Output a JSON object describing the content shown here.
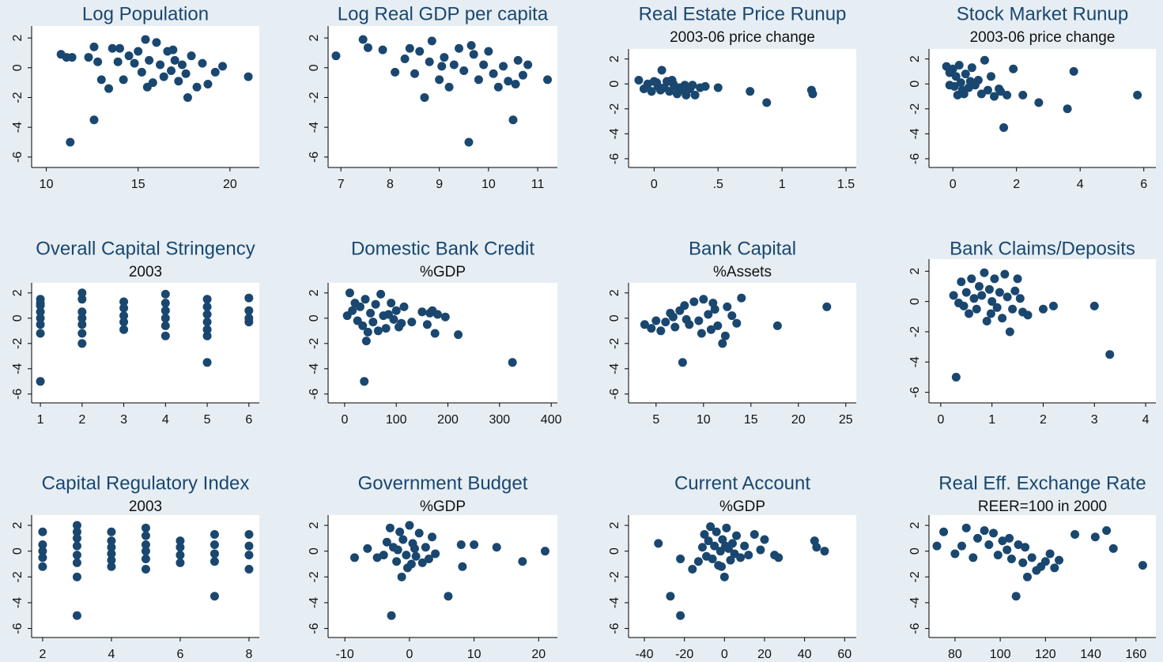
{
  "chart_data": [
    {
      "type": "scatter",
      "title": "Log Population",
      "color": "#1a476f",
      "x": [
        11.3,
        12.6,
        21,
        17.7,
        10.8,
        11.1,
        11.4,
        12.3,
        12.6,
        12.8,
        13,
        13.4,
        13.6,
        13.9,
        14.2,
        14.5,
        14.8,
        15,
        15.2,
        15.4,
        15.6,
        15.8,
        16,
        16.2,
        16.4,
        16.6,
        16.8,
        17,
        17.2,
        17.4,
        17.6,
        17.9,
        18.2,
        18.5,
        18.8,
        19.2,
        19.6,
        14,
        15.5,
        16.9
      ],
      "values": [
        -5,
        -3.5,
        -0.6,
        -2,
        0.9,
        0.7,
        0.7,
        0.7,
        1.4,
        0.4,
        -0.8,
        -1.4,
        1.3,
        0.4,
        -0.8,
        0.8,
        0.3,
        1.1,
        -0.3,
        1.9,
        0.5,
        -1,
        1.7,
        0.2,
        -0.6,
        1.1,
        -0.2,
        0.5,
        -0.9,
        0.2,
        -0.4,
        0.8,
        -1.3,
        0.3,
        -1.1,
        -0.3,
        0.1,
        1.3,
        -1.3,
        1.2
      ],
      "xlim": [
        9.2,
        21.6
      ],
      "xticks": [
        10,
        15,
        20
      ],
      "ylim": [
        -6.7,
        2.8
      ],
      "yticks": [
        -6,
        -4,
        -2,
        0,
        2
      ]
    },
    {
      "type": "scatter",
      "title": "Log Real GDP per capita",
      "color": "#1a476f",
      "x": [
        6.9,
        7.45,
        7.55,
        7.85,
        8.1,
        8.3,
        8.4,
        8.5,
        8.6,
        8.7,
        8.8,
        8.85,
        9,
        9.1,
        9.2,
        9.3,
        9.4,
        9.5,
        9.6,
        9.7,
        9.8,
        9.9,
        10,
        10.1,
        10.2,
        10.3,
        10.4,
        10.5,
        10.6,
        10.7,
        10.8,
        11.2,
        9.65,
        9.05,
        10.55
      ],
      "values": [
        0.8,
        1.9,
        1.35,
        1.2,
        -0.3,
        0.6,
        1.3,
        -0.4,
        1.1,
        -2,
        0.4,
        1.8,
        -0.8,
        0.7,
        -1.3,
        0.2,
        1.3,
        -0.2,
        -5,
        0.9,
        -0.8,
        0.2,
        1.1,
        -0.4,
        -1.3,
        0.1,
        -0.9,
        -3.5,
        0.5,
        -0.5,
        0.2,
        -0.8,
        1.5,
        0.1,
        -1.1
      ],
      "xlim": [
        6.74,
        11.4
      ],
      "xticks": [
        7,
        8,
        9,
        10,
        11
      ],
      "ylim": [
        -6.7,
        2.8
      ],
      "yticks": [
        -6,
        -4,
        -2,
        0,
        2
      ]
    },
    {
      "type": "scatter",
      "title": "Real Estate Price Runup",
      "subtitle": "2003-06 price change",
      "color": "#1a476f",
      "x": [
        -0.12,
        -0.08,
        -0.05,
        -0.02,
        0,
        0.03,
        0.05,
        0.06,
        0.08,
        0.1,
        0.12,
        0.14,
        0.16,
        0.18,
        0.2,
        0.22,
        0.25,
        0.28,
        0.3,
        0.32,
        0.36,
        0.4,
        0.5,
        0.75,
        0.88,
        1.23,
        1.24,
        0.02,
        0.15,
        0.24
      ],
      "values": [
        0.3,
        -0.4,
        0,
        -0.6,
        0.2,
        -0.2,
        -0.5,
        1.1,
        -0.3,
        0.2,
        -0.6,
        0.3,
        -0.2,
        -0.8,
        -0.3,
        -0.5,
        -0.9,
        -0.4,
        -0.1,
        -0.9,
        -0.3,
        -0.2,
        -0.3,
        -0.6,
        -1.5,
        -0.5,
        -0.8,
        0.1,
        0,
        -0.1
      ],
      "xlim": [
        -0.2,
        1.58
      ],
      "xticks": [
        0,
        {
          "value": 0.5,
          "label": ".5"
        },
        1,
        1.5
      ],
      "ylim": [
        -6.7,
        2.8
      ],
      "yticks": [
        -6,
        -4,
        -2,
        0,
        2
      ]
    },
    {
      "type": "scatter",
      "title": "Stock Market Runup",
      "subtitle": "2003-06 price change",
      "color": "#1a476f",
      "x": [
        -0.2,
        -0.1,
        0,
        0.05,
        0.1,
        0.15,
        0.2,
        0.25,
        0.3,
        0.4,
        0.5,
        0.6,
        0.7,
        0.8,
        0.9,
        1,
        1.1,
        1.2,
        1.3,
        1.5,
        1.6,
        1.7,
        1.9,
        2.2,
        2.7,
        3.6,
        3.8,
        5.8,
        0.35,
        0.55,
        1.45,
        -0.1
      ],
      "values": [
        1.4,
        0.9,
        1.2,
        -0.2,
        0.6,
        -0.9,
        1.5,
        0.1,
        -0.5,
        0.8,
        -0.3,
        1.3,
        -0.1,
        0.3,
        -0.8,
        1.9,
        -0.5,
        0.6,
        -1,
        -0.6,
        -3.5,
        -0.9,
        1.2,
        -0.9,
        -1.5,
        -2,
        1,
        -0.9,
        -0.8,
        0.2,
        -0.4,
        -0.1
      ],
      "xlim": [
        -0.75,
        6.38
      ],
      "xticks": [
        0,
        2,
        4,
        6
      ],
      "ylim": [
        -6.7,
        2.8
      ],
      "yticks": [
        -6,
        -4,
        -2,
        0,
        2
      ]
    },
    {
      "type": "scatter",
      "title": "Overall Capital Stringency",
      "subtitle": "2003",
      "color": "#1a476f",
      "x": [
        1,
        1,
        1,
        1,
        1,
        1,
        1,
        1,
        2,
        2,
        2,
        2,
        2,
        2,
        2,
        3,
        3,
        3,
        3,
        3,
        4,
        4,
        4,
        4,
        4,
        4,
        5,
        5,
        5,
        5,
        5,
        5,
        5,
        6,
        6,
        6,
        6
      ],
      "values": [
        1.5,
        1,
        0.5,
        0,
        -0.5,
        -1.2,
        -5,
        1.2,
        2,
        1.5,
        0.5,
        0,
        -0.5,
        -1.2,
        -2,
        1.3,
        0.8,
        0.2,
        -0.3,
        -0.9,
        1.9,
        1.2,
        0.6,
        0,
        -0.6,
        -1.4,
        1.5,
        0.9,
        0.3,
        -0.3,
        -0.9,
        -1.4,
        -3.5,
        1.6,
        0.6,
        0,
        -0.3
      ],
      "xlim": [
        0.79,
        6.25
      ],
      "xticks": [
        1,
        2,
        3,
        4,
        5,
        6
      ],
      "ylim": [
        -6.7,
        2.8
      ],
      "yticks": [
        -6,
        -4,
        -2,
        0,
        2
      ]
    },
    {
      "type": "scatter",
      "title": "Domestic Bank Credit",
      "subtitle": "%GDP",
      "color": "#1a476f",
      "x": [
        10,
        20,
        15,
        25,
        30,
        35,
        38,
        40,
        42,
        50,
        55,
        60,
        65,
        70,
        75,
        80,
        90,
        95,
        100,
        110,
        115,
        130,
        150,
        160,
        165,
        175,
        180,
        195,
        220,
        325,
        5,
        45,
        85,
        105,
        170
      ],
      "values": [
        2,
        1.2,
        0.6,
        -0.2,
        0.9,
        -0.6,
        -5,
        1.5,
        -1.8,
        0.4,
        -0.3,
        1.1,
        -1,
        1.9,
        0.2,
        -0.8,
        1.2,
        -0.1,
        0.6,
        -0.4,
        0.9,
        -0.3,
        0.5,
        -0.5,
        0.4,
        -1.2,
        0.3,
        0.1,
        -1.3,
        -3.5,
        0.2,
        -1.1,
        0.3,
        -0.7,
        0.6
      ],
      "xlim": [
        -32,
        412
      ],
      "xticks": [
        0,
        100,
        200,
        300,
        400
      ],
      "ylim": [
        -6.7,
        2.8
      ],
      "yticks": [
        -6,
        -4,
        -2,
        0,
        2
      ]
    },
    {
      "type": "scatter",
      "title": "Bank Capital",
      "subtitle": "%Assets",
      "color": "#1a476f",
      "x": [
        3.8,
        4.5,
        5,
        5.5,
        6,
        6.5,
        7,
        7.5,
        7.8,
        8,
        8.5,
        9,
        9.5,
        10,
        10.5,
        11,
        11.5,
        12,
        12.5,
        13,
        13.5,
        14,
        17.8,
        23,
        6.8,
        8.2,
        9.8,
        11.2,
        12.3,
        10.8
      ],
      "values": [
        -0.5,
        -0.8,
        -0.2,
        -1,
        -0.3,
        0.4,
        -0.7,
        0.6,
        -3.5,
        1,
        -0.5,
        1.3,
        -0.2,
        1.5,
        0.3,
        1.2,
        -0.6,
        -2,
        0.9,
        0.2,
        -0.4,
        1.6,
        -0.6,
        0.9,
        0.1,
        -0.1,
        -1.2,
        0.7,
        -1.4,
        -0.9
      ],
      "xlim": [
        2.1,
        26.1
      ],
      "xticks": [
        5,
        10,
        15,
        20,
        25
      ],
      "ylim": [
        -6.7,
        2.8
      ],
      "yticks": [
        -6,
        -4,
        -2,
        0,
        2
      ]
    },
    {
      "type": "scatter",
      "title": "Bank Claims/Deposits",
      "color": "#1a476f",
      "x": [
        0.3,
        0.25,
        0.35,
        0.4,
        0.5,
        0.55,
        0.6,
        0.65,
        0.7,
        0.75,
        0.8,
        0.85,
        0.9,
        0.95,
        1,
        1.05,
        1.1,
        1.15,
        1.2,
        1.25,
        1.3,
        1.35,
        1.4,
        1.5,
        1.55,
        1.6,
        1.7,
        2,
        2.2,
        3,
        3.3,
        0.45,
        0.98,
        1.45
      ],
      "values": [
        -5,
        0.4,
        -0.1,
        1.3,
        0.6,
        -0.8,
        1.5,
        0.2,
        -0.5,
        1,
        0.4,
        1.9,
        -1.3,
        0.8,
        0,
        1.5,
        -0.4,
        0.6,
        -1.1,
        1.8,
        0.3,
        -2,
        -0.5,
        1.5,
        0.2,
        -0.7,
        -0.9,
        -0.5,
        -0.3,
        -0.3,
        -3.5,
        -0.3,
        -0.8,
        0.7
      ],
      "xlim": [
        -0.23,
        4.2
      ],
      "xticks": [
        0,
        1,
        2,
        3,
        4
      ],
      "ylim": [
        -6.7,
        2.8
      ],
      "yticks": [
        -6,
        -4,
        -2,
        0,
        2
      ]
    },
    {
      "type": "scatter",
      "title": "Capital Regulatory Index",
      "subtitle": "2003",
      "color": "#1a476f",
      "x": [
        2,
        2,
        2,
        2,
        2,
        3,
        3,
        3,
        3,
        3,
        3,
        3,
        3,
        4,
        4,
        4,
        4,
        4,
        4,
        5,
        5,
        5,
        5,
        5,
        5,
        6,
        6,
        6,
        6,
        7,
        7,
        7,
        7,
        7,
        8,
        8,
        8,
        8
      ],
      "values": [
        1.5,
        0.5,
        0,
        -0.5,
        -1.2,
        2,
        1.5,
        1,
        0.4,
        -0.3,
        -0.9,
        -2,
        -5,
        1.5,
        0.8,
        0.3,
        -0.2,
        -0.7,
        -1.2,
        1.8,
        1.2,
        0.5,
        0,
        -0.6,
        -1.4,
        0.8,
        0.3,
        -0.3,
        -0.9,
        1.3,
        0.5,
        -0.2,
        -0.8,
        -3.5,
        1.3,
        0.4,
        -0.3,
        -1.4
      ],
      "xlim": [
        1.68,
        8.3
      ],
      "xticks": [
        2,
        4,
        6,
        8
      ],
      "ylim": [
        -6.7,
        2.8
      ],
      "yticks": [
        -6,
        -4,
        -2,
        0,
        2
      ]
    },
    {
      "type": "scatter",
      "title": "Government Budget",
      "subtitle": "%GDP",
      "color": "#1a476f",
      "x": [
        -8.5,
        -6.5,
        -5,
        -4,
        -3.5,
        -3,
        -2.8,
        -2.5,
        -2,
        -1.5,
        -1.2,
        -1,
        -0.5,
        0,
        0.3,
        0.5,
        1,
        1.5,
        2,
        2.5,
        3,
        3.5,
        4,
        6,
        8,
        8.2,
        10,
        13.5,
        17.5,
        21,
        -1.8,
        0.8,
        -0.3
      ],
      "values": [
        -0.5,
        0.2,
        -0.5,
        -0.3,
        0.7,
        1.8,
        -5,
        0.3,
        -0.8,
        1.5,
        -2,
        0.9,
        -0.3,
        2,
        -1,
        0.6,
        -0.4,
        1.4,
        -0.9,
        0.3,
        -0.6,
        1.1,
        -0.2,
        -3.5,
        0.5,
        -1.2,
        0.5,
        0.3,
        -0.8,
        0,
        0.1,
        0.2,
        -1.3
      ],
      "xlim": [
        -12.6,
        22.9
      ],
      "xticks": [
        -10,
        0,
        10,
        20
      ],
      "ylim": [
        -6.7,
        2.8
      ],
      "yticks": [
        -6,
        -4,
        -2,
        0,
        2
      ]
    },
    {
      "type": "scatter",
      "title": "Current Account",
      "subtitle": "%GDP",
      "color": "#1a476f",
      "x": [
        -33,
        -27,
        -22,
        -22,
        -16,
        -13,
        -11,
        -10,
        -9,
        -8,
        -7,
        -6,
        -5,
        -4,
        -3,
        -2,
        -1,
        0,
        1,
        2,
        3,
        4,
        5,
        6,
        8,
        10,
        12,
        15,
        18,
        20,
        25,
        27,
        45,
        46,
        50,
        -1.5,
        0.5
      ],
      "values": [
        0.6,
        -3.5,
        -5,
        -0.6,
        -1.4,
        -0.8,
        0.3,
        1.3,
        -0.4,
        0.8,
        1.9,
        -0.6,
        0.4,
        1.5,
        -1.1,
        0,
        0.9,
        -2,
        1.8,
        0.2,
        -0.7,
        0.6,
        -0.2,
        1.2,
        -0.5,
        0.4,
        -0.3,
        1.3,
        0.1,
        0.9,
        -0.3,
        -0.5,
        0.8,
        0.3,
        0,
        -1.2,
        0.4
      ],
      "xlim": [
        -47.9,
        65.8
      ],
      "xticks": [
        -40,
        -20,
        0,
        20,
        40,
        60
      ],
      "ylim": [
        -6.7,
        2.8
      ],
      "yticks": [
        -6,
        -4,
        -2,
        0,
        2
      ]
    },
    {
      "type": "scatter",
      "title": "Real Eff. Exchange Rate",
      "subtitle": "REER=100 in 2000",
      "color": "#1a476f",
      "x": [
        72,
        75,
        80,
        83,
        85,
        88,
        90,
        93,
        95,
        97,
        99,
        101,
        103,
        105,
        107,
        108,
        110,
        112,
        114,
        116,
        120,
        122,
        124,
        126,
        133,
        142,
        147,
        150,
        163,
        111,
        104,
        118
      ],
      "values": [
        0.4,
        1.5,
        -0.2,
        0.4,
        1.8,
        -0.5,
        1,
        1.6,
        0.5,
        1.4,
        -0.3,
        0.8,
        0.1,
        -0.6,
        -3.5,
        0.5,
        -0.9,
        -2,
        -0.5,
        -1.5,
        -0.8,
        -0.2,
        -1.3,
        -0.7,
        1.3,
        1.1,
        1.6,
        0.2,
        -1.1,
        0.3,
        1,
        -1.2
      ],
      "xlim": [
        68.5,
        168.8
      ],
      "xticks": [
        80,
        100,
        120,
        140,
        160
      ],
      "ylim": [
        -6.7,
        2.8
      ],
      "yticks": [
        -6,
        -4,
        -2,
        0,
        2
      ]
    }
  ]
}
